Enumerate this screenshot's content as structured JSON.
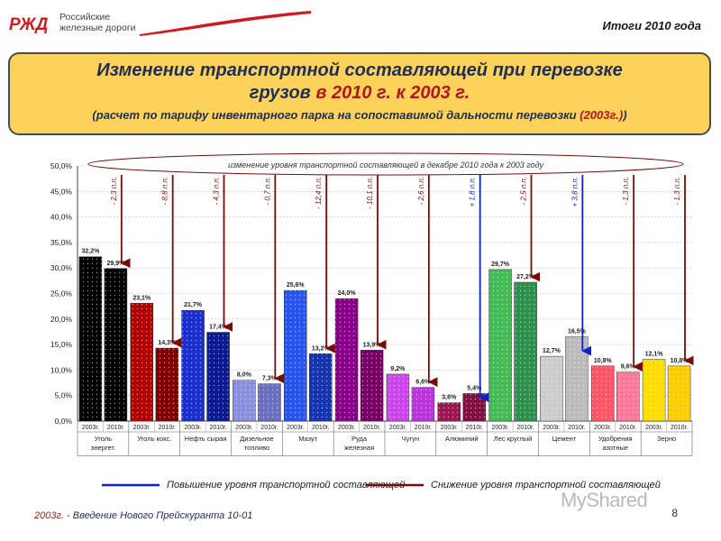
{
  "header": {
    "logo_letters": "РЖД",
    "logo_line1": "Российские",
    "logo_line2": "железные дороги",
    "results_label": "Итоги 2010 года"
  },
  "title": {
    "line1": "Изменение транспортной составляющей при перевозке",
    "line2_part1": "грузов",
    "line2_part2": "в 2010 г. к 2003 г.",
    "line3_part1": "(расчет по тарифу инвентарного парка на сопоставимой дальности перевозки",
    "line3_part2": "(2003г.)",
    "line3_part3": ")"
  },
  "chart_data": {
    "type": "bar",
    "annotation": "изменение уровня транспортной составляющей в декабре 2010 года к 2003 году",
    "ylim": [
      0,
      50
    ],
    "yticks": [
      "0,0%",
      "5,0%",
      "10,0%",
      "15,0%",
      "20,0%",
      "25,0%",
      "30,0%",
      "35,0%",
      "40,0%",
      "45,0%",
      "50,0%"
    ],
    "bar_labels": [
      "2003г.",
      "2010г."
    ],
    "categories": [
      "Уголь энергет.",
      "Уголь кокс.",
      "Нефть сырая",
      "Дизельное топливо",
      "Мазут",
      "Руда железная",
      "Чугун",
      "Алюминий",
      "Лес круглый",
      "Цемент",
      "Удобрения азотные",
      "Зерно"
    ],
    "series": [
      {
        "name": "2003г.",
        "values": [
          32.2,
          23.1,
          21.7,
          8.0,
          25.6,
          24.0,
          9.2,
          3.6,
          29.7,
          12.7,
          10.8,
          12.1
        ],
        "labels": [
          "32,2%",
          "23,1%",
          "21,7%",
          "8,0%",
          "25,6%",
          "24,0%",
          "9,2%",
          "3,6%",
          "29,7%",
          "12,7%",
          "10,8%",
          "12,1%"
        ]
      },
      {
        "name": "2010г.",
        "values": [
          29.9,
          14.3,
          17.4,
          7.3,
          13.2,
          13.9,
          6.6,
          5.4,
          27.2,
          16.5,
          9.6,
          10.8
        ],
        "labels": [
          "29,9%",
          "14,3%",
          "17,4%",
          "7,3%",
          "13,2%",
          "13,9%",
          "6,6%",
          "5,4%",
          "27,2%",
          "16,5%",
          "9,6%",
          "10,8%"
        ]
      }
    ],
    "changes": [
      "- 2,3 п.п.",
      "- 8,8 п.п.",
      "- 4,3 п.п.",
      "- 0,7 п.п.",
      "- 12,4 п.п.",
      "- 10,1 п.п.",
      "- 2,6 п.п.",
      "+ 1,8 п.п.",
      "- 2,5 п.п.",
      "+ 3,8 п.п.",
      "- 1,3 п.п.",
      "- 1,3 п.п."
    ],
    "change_direction": [
      "down",
      "down",
      "down",
      "down",
      "down",
      "down",
      "down",
      "up",
      "down",
      "up",
      "down",
      "down"
    ],
    "colors": {
      "category_2003": [
        "#000000",
        "#b00000",
        "#1b2fd0",
        "#8a8fe0",
        "#2555ee",
        "#880088",
        "#cc44ee",
        "#9a1650",
        "#44bb55",
        "#cccccc",
        "#ff5566",
        "#ffdd00"
      ],
      "category_2010": [
        "#000000",
        "#800000",
        "#0a1a90",
        "#6a6fc0",
        "#1535b0",
        "#770066",
        "#bb33dd",
        "#801040",
        "#2e8f4e",
        "#bbbbbb",
        "#ff7799",
        "#ffcc00"
      ],
      "increase": "#1020d0",
      "decrease": "#7a0a0a"
    },
    "legend": {
      "increase": "Повышение уровня транспортной составляющей",
      "decrease": "Снижение уровня транспортной составляющей"
    },
    "grid": true
  },
  "footer": {
    "year": "2003г.",
    "note": " - Введение Нового Прейскуранта 10-01",
    "page": "8",
    "watermark": "MyShared"
  }
}
